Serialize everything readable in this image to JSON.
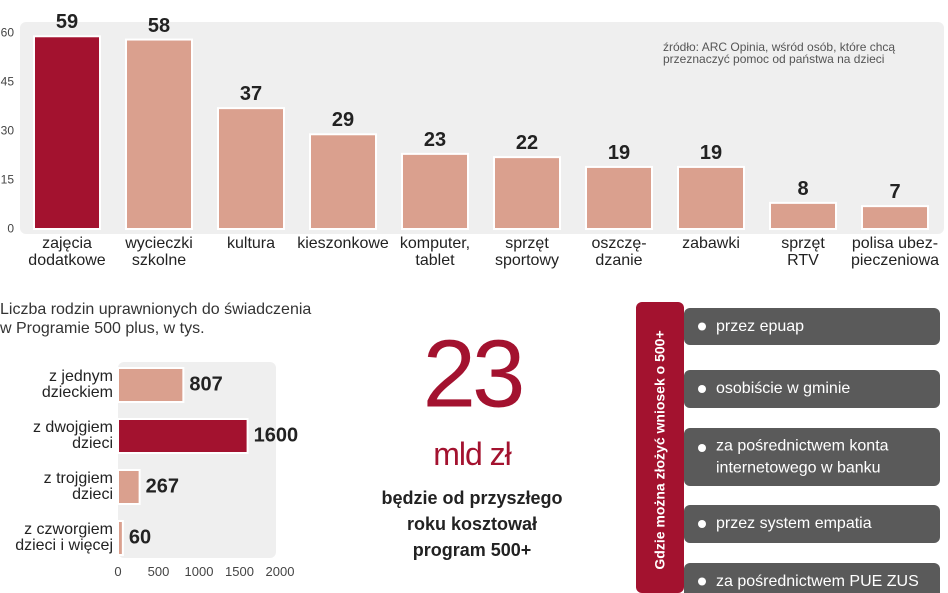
{
  "chart_data": [
    {
      "type": "bar",
      "categories": [
        "zajęcia\ndodatkowe",
        "wycieczki\nszkolne",
        "kultura",
        "kieszonkowe",
        "komputer,\ntablet",
        "sprzęt\nsportowy",
        "oszczę-\ndzanie",
        "zabawki",
        "sprzęt\nRTV",
        "polisa ubez-\npieczeniowa"
      ],
      "values": [
        59,
        58,
        37,
        29,
        23,
        22,
        19,
        19,
        8,
        7
      ],
      "colors": [
        "#a3122f",
        "#daa08e",
        "#daa08e",
        "#daa08e",
        "#daa08e",
        "#daa08e",
        "#daa08e",
        "#daa08e",
        "#daa08e",
        "#daa08e"
      ],
      "ylim": [
        0,
        60
      ],
      "yticks": [
        0,
        15,
        30,
        45,
        60
      ],
      "note": "źródło: ARC Opinia, wśród osób, które chcą\nprzeznaczyć pomoc od państwa na dzieci"
    },
    {
      "type": "barh",
      "title": "Liczba rodzin uprawnionych do świadczenia\nw Programie  500 plus, w tys.",
      "categories": [
        "z jednym\ndzieckiem",
        "z dwojgiem\ndzieci",
        "z trojgiem\ndzieci",
        "z czworgiem\ndzieci i więcej"
      ],
      "values": [
        807,
        1600,
        267,
        60
      ],
      "colors": [
        "#daa08e",
        "#a3122f",
        "#daa08e",
        "#daa08e"
      ],
      "xlim": [
        0,
        2000
      ],
      "xticks": [
        0,
        500,
        1000,
        1500,
        2000
      ]
    }
  ],
  "headline": {
    "number": "23",
    "unit": "mld zł",
    "text": "będzie od przyszłego\nroku kosztował\nprogram 500+"
  },
  "panel": {
    "title": "Gdzie można złożyć wniosek o 500+",
    "items": [
      "przez epuap",
      "osobiście w gminie",
      "za pośrednictwem konta\ninternetowego w banku",
      "przez system empatia",
      "za pośrednictwem PUE ZUS"
    ]
  }
}
